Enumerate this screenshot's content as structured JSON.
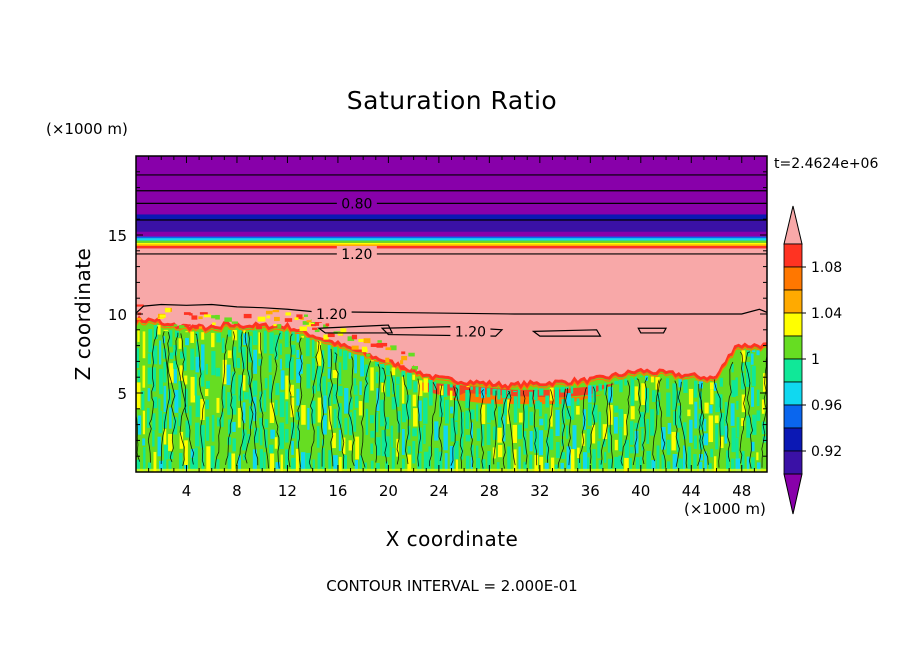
{
  "chart_data": {
    "type": "heatmap",
    "title": "Saturation Ratio",
    "xlabel": "X coordinate",
    "ylabel": "Z coordinate",
    "x_unit": "(×1000 m)",
    "y_unit": "(×1000 m)",
    "timestamp": "t=2.4624e+06",
    "footer": "CONTOUR INTERVAL = 2.000E-01",
    "xlim": [
      0,
      50
    ],
    "ylim": [
      0,
      20
    ],
    "x_ticks": [
      4,
      8,
      12,
      16,
      20,
      24,
      28,
      32,
      36,
      40,
      44,
      48
    ],
    "y_ticks": [
      5,
      10,
      15
    ],
    "colorbar": {
      "levels": [
        0.92,
        0.96,
        1,
        1.04,
        1.08
      ],
      "tick_labels": [
        "0.92",
        "0.96",
        "1",
        "1.04",
        "1.08"
      ],
      "colors": [
        "#8800aa",
        "#3a11a6",
        "#0b18b4",
        "#0a66ee",
        "#10d8f0",
        "#10e898",
        "#66dd22",
        "#ffff00",
        "#ffaa00",
        "#ff7700",
        "#ff3322",
        "#f8a8a8"
      ],
      "under_color": "#8800aa",
      "over_color": "#f8a8a8"
    },
    "contour_labels": [
      {
        "text": "0.80",
        "x": 17.5,
        "z": 17.0
      },
      {
        "text": "1.20",
        "x": 17.5,
        "z": 13.8
      },
      {
        "text": "1.20",
        "x": 15.5,
        "z": 10.0
      },
      {
        "text": "1.20",
        "x": 26.5,
        "z": 8.9
      }
    ],
    "layers": [
      {
        "z": [
          17.8,
          20.0
        ],
        "value": "< 0.92"
      },
      {
        "z": [
          16.1,
          17.8
        ],
        "value": "< 0.92"
      },
      {
        "z": [
          15.1,
          16.1
        ],
        "value": "0.92"
      },
      {
        "z": [
          14.6,
          15.1
        ],
        "value": "0.92-1.00"
      },
      {
        "z": [
          14.1,
          14.6
        ],
        "value": "1.00-1.08"
      },
      {
        "z": [
          9.5,
          14.1
        ],
        "value": "> 1.08"
      },
      {
        "z": [
          0.0,
          8.0
        ],
        "value": "0.96-1.02 (turbulent)"
      }
    ]
  }
}
